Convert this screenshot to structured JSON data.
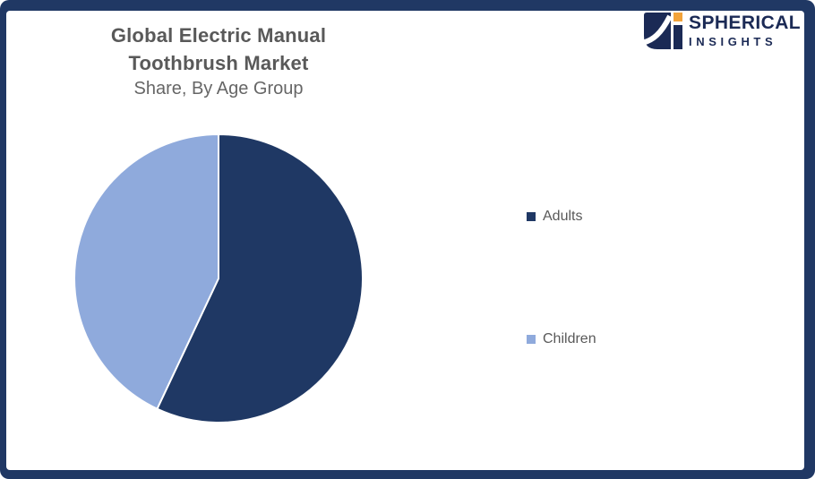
{
  "frame": {
    "border_color": "#203864",
    "background_color": "#FFFFFF"
  },
  "title": {
    "line1": "Global Electric Manual",
    "line2": "Toothbrush Market",
    "subtitle": "Share, By Age Group",
    "title_color": "#595959",
    "subtitle_color": "#666666"
  },
  "logo": {
    "brand": "SPHERICAL",
    "brand_sub": "INSIGHTS",
    "navy": "#1B2A55",
    "orange": "#F2A33A",
    "icon": "spherical-insights-logomark"
  },
  "chart_data": {
    "type": "pie",
    "title": "Global Electric Manual Toothbrush Market Share, By Age Group",
    "slices": [
      {
        "label": "Adults",
        "value": 57,
        "color": "#1F3864"
      },
      {
        "label": "Children",
        "value": 43,
        "color": "#8FAADC"
      }
    ],
    "values_unit": "percent",
    "start_angle_deg": 0,
    "direction": "clockwise",
    "slice_border_color": "#FFFFFF",
    "legend_position": "right",
    "data_labels_shown": false
  }
}
